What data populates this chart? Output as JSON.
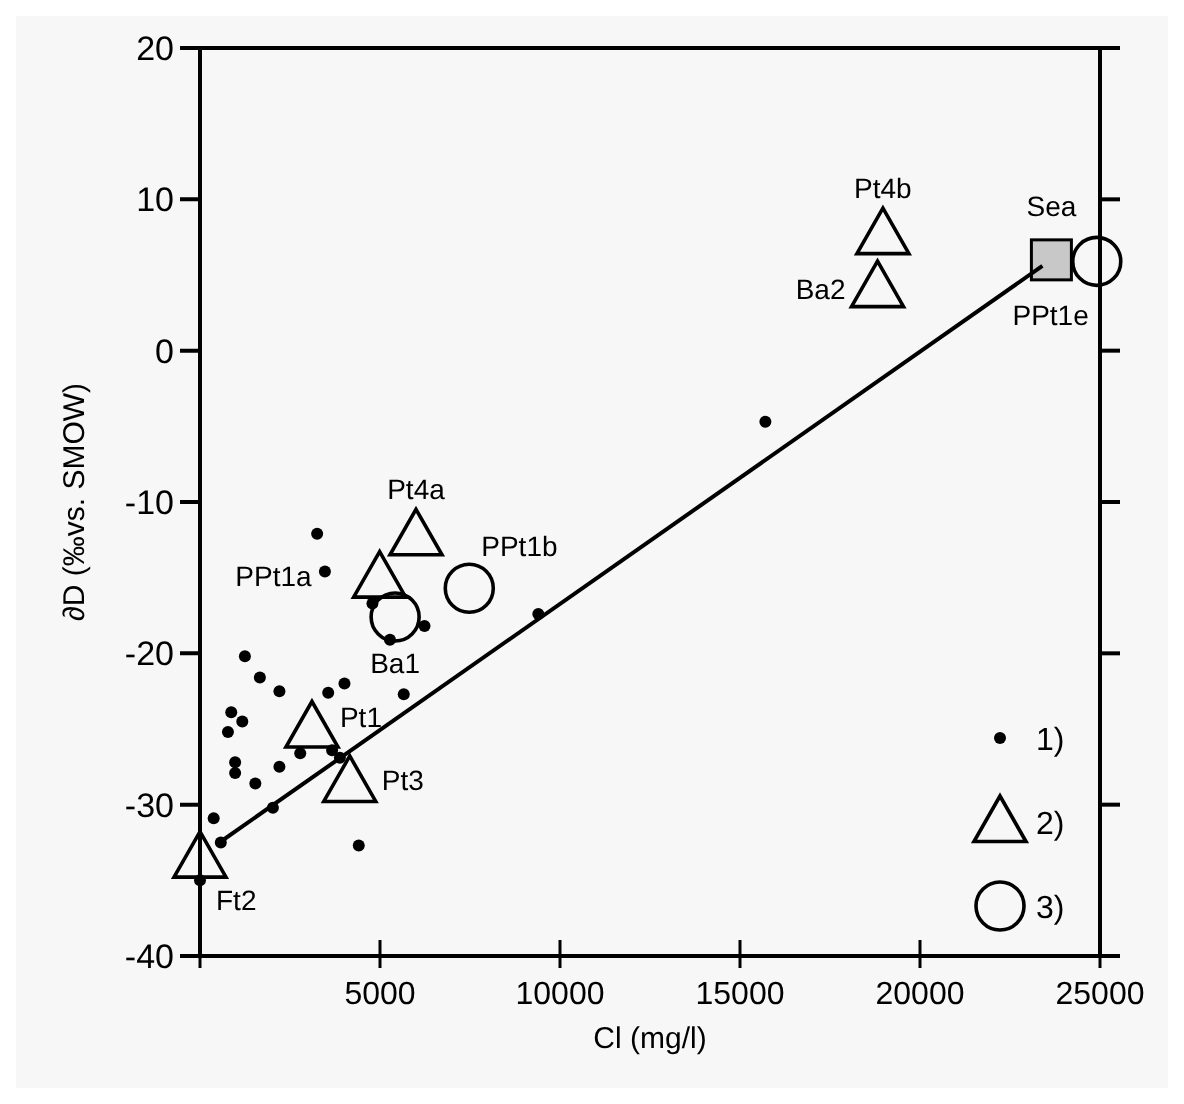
{
  "chart_data": {
    "type": "scatter",
    "xlabel": "Cl (mg/l)",
    "ylabel": "∂D (‰vs. SMOW)",
    "xlim": [
      0,
      25000
    ],
    "xticks": [
      {
        "value": 0,
        "label": null
      },
      5000,
      10000,
      15000,
      20000,
      25000
    ],
    "ylim": [
      -40,
      20
    ],
    "yticks": [
      -40,
      -30,
      -20,
      -10,
      0,
      10,
      20
    ],
    "legend": "bottom right",
    "grid": false,
    "series": [
      {
        "name": "1)",
        "marker": "circle",
        "color": "#000000",
        "x": [
          3254,
          3470,
          4790,
          6236,
          5277,
          1247,
          1663,
          2206,
          3561,
          4013,
          5660,
          868,
          1175,
          776,
          976,
          976,
          1537,
          2206,
          2784,
          3670,
          3886,
          2025,
          380,
          578,
          4410,
          0,
          15705,
          9398
        ],
        "values": [
          -12.1,
          -14.6,
          -16.7,
          -18.2,
          -19.1,
          -20.2,
          -21.6,
          -22.5,
          -22.6,
          -22.0,
          -22.7,
          -23.9,
          -24.5,
          -25.2,
          -27.2,
          -27.9,
          -28.6,
          -27.5,
          -26.6,
          -26.4,
          -26.9,
          -30.2,
          -30.9,
          -32.5,
          -32.7,
          -35.0,
          -4.7,
          -17.4
        ]
      },
      {
        "name": "2)",
        "marker": "triangle",
        "color": "#000000",
        "x": [
          18970,
          18820,
          6000,
          4990,
          3110,
          4160,
          0
        ],
        "values": [
          7.7,
          4.2,
          -12.2,
          -15.0,
          -24.9,
          -28.5,
          -33.5
        ]
      },
      {
        "name": "3)",
        "marker": "circle",
        "color": "#000000",
        "x": [
          5420,
          7480,
          24910
        ],
        "values": [
          -17.6,
          -15.7,
          5.9
        ]
      },
      {
        "marker": "square",
        "color": "#c8c8c8",
        "x": [
          23650
        ],
        "values": [
          6.0
        ]
      },
      {
        "type": "line",
        "color": "#000000",
        "x": [
          540,
          23400
        ],
        "values": [
          -32.5,
          5.6
        ]
      }
    ],
    "annotations": [
      {
        "text": "Pt4b",
        "x": 18970,
        "y": 7.7
      },
      {
        "text": "Sea",
        "x": 23650,
        "y": 6.0
      },
      {
        "text": "Ba2",
        "x": 18820,
        "y": 4.2
      },
      {
        "text": "PPt1e",
        "x": 24910,
        "y": 5.9
      },
      {
        "text": "Pt4a",
        "x": 6000,
        "y": -12.2
      },
      {
        "text": "PPt1b",
        "x": 7480,
        "y": -15.7
      },
      {
        "text": "PPt1a",
        "x": 4990,
        "y": -15.0
      },
      {
        "text": "Ba1",
        "x": 5420,
        "y": -17.6
      },
      {
        "text": "Pt1",
        "x": 3110,
        "y": -24.9
      },
      {
        "text": "Pt3",
        "x": 4160,
        "y": -28.5
      },
      {
        "text": "Ft2",
        "x": 0,
        "y": -33.5
      }
    ]
  }
}
